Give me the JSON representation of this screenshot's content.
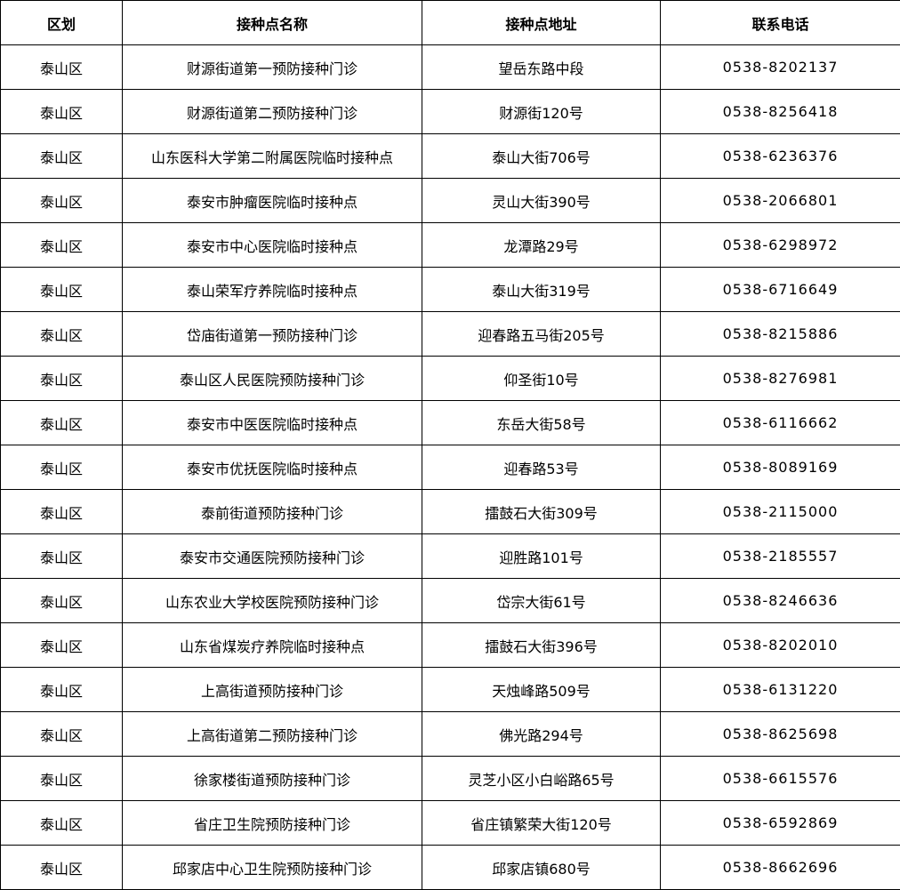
{
  "table": {
    "headers": [
      "区划",
      "接种点名称",
      "接种点地址",
      "联系电话"
    ],
    "rows": [
      [
        "泰山区",
        "财源街道第一预防接种门诊",
        "望岳东路中段",
        "0538-8202137"
      ],
      [
        "泰山区",
        "财源街道第二预防接种门诊",
        "财源街120号",
        "0538-8256418"
      ],
      [
        "泰山区",
        "山东医科大学第二附属医院临时接种点",
        "泰山大街706号",
        "0538-6236376"
      ],
      [
        "泰山区",
        "泰安市肿瘤医院临时接种点",
        "灵山大街390号",
        "0538-2066801"
      ],
      [
        "泰山区",
        "泰安市中心医院临时接种点",
        "龙潭路29号",
        "0538-6298972"
      ],
      [
        "泰山区",
        "泰山荣军疗养院临时接种点",
        "泰山大街319号",
        "0538-6716649"
      ],
      [
        "泰山区",
        "岱庙街道第一预防接种门诊",
        "迎春路五马街205号",
        "0538-8215886"
      ],
      [
        "泰山区",
        "泰山区人民医院预防接种门诊",
        "仰圣街10号",
        "0538-8276981"
      ],
      [
        "泰山区",
        "泰安市中医医院临时接种点",
        "东岳大街58号",
        "0538-6116662"
      ],
      [
        "泰山区",
        "泰安市优抚医院临时接种点",
        "迎春路53号",
        "0538-8089169"
      ],
      [
        "泰山区",
        "泰前街道预防接种门诊",
        "擂鼓石大街309号",
        "0538-2115000"
      ],
      [
        "泰山区",
        "泰安市交通医院预防接种门诊",
        "迎胜路101号",
        "0538-2185557"
      ],
      [
        "泰山区",
        "山东农业大学校医院预防接种门诊",
        "岱宗大街61号",
        "0538-8246636"
      ],
      [
        "泰山区",
        "山东省煤炭疗养院临时接种点",
        "擂鼓石大街396号",
        "0538-8202010"
      ],
      [
        "泰山区",
        "上高街道预防接种门诊",
        "天烛峰路509号",
        "0538-6131220"
      ],
      [
        "泰山区",
        "上高街道第二预防接种门诊",
        "佛光路294号",
        "0538-8625698"
      ],
      [
        "泰山区",
        "徐家楼街道预防接种门诊",
        "灵芝小区小白峪路65号",
        "0538-6615576"
      ],
      [
        "泰山区",
        "省庄卫生院预防接种门诊",
        "省庄镇繁荣大街120号",
        "0538-6592869"
      ],
      [
        "泰山区",
        "邱家店中心卫生院预防接种门诊",
        "邱家店镇680号",
        "0538-8662696"
      ]
    ]
  }
}
